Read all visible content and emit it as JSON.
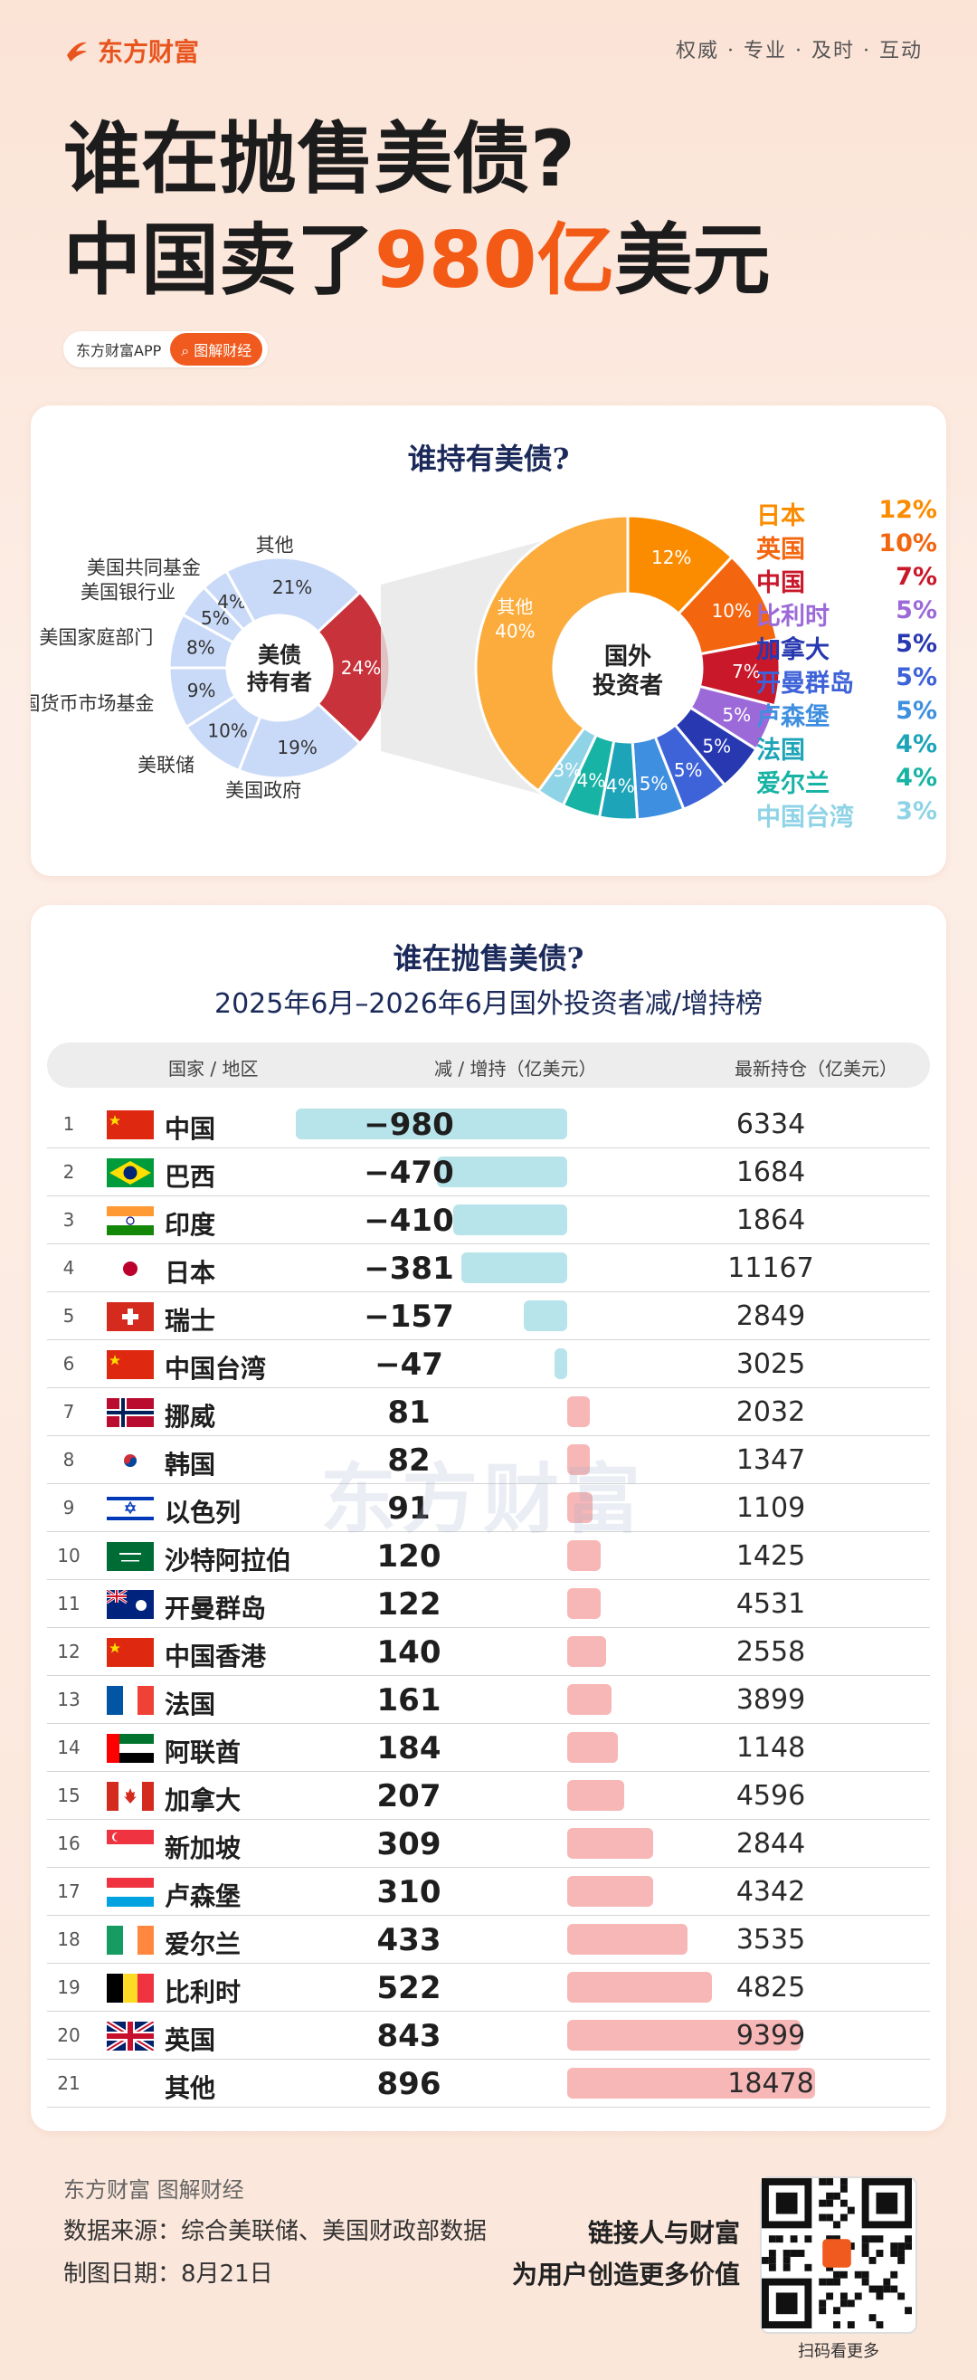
{
  "header": {
    "brand": "东方财富",
    "slogan": "权威 · 专业 · 及时 · 互动",
    "headline_line1": "谁在抛售美债?",
    "headline_line2_prefix": "中国卖了",
    "headline_line2_highlight": "980亿",
    "headline_line2_suffix": "美元",
    "pill_left": "东方财富APP",
    "pill_right": "图解财经"
  },
  "holders": {
    "title": "谁持有美债?",
    "inner_center": [
      "美债",
      "持有者"
    ],
    "outer_center": [
      "国外",
      "投资者"
    ],
    "watermark": "东方财富"
  },
  "chart_data": [
    {
      "type": "pie",
      "title": "谁持有美债?",
      "slices": [
        {
          "label": "其他",
          "value": 21,
          "color": "#c9daf8"
        },
        {
          "label": "美国政府",
          "value": 19,
          "color": "#c9daf8"
        },
        {
          "label": "美联储",
          "value": 10,
          "color": "#c9daf8"
        },
        {
          "label": "美国货币市场基金",
          "value": 9,
          "color": "#c9daf8"
        },
        {
          "label": "美国家庭部门",
          "value": 8,
          "color": "#c9daf8"
        },
        {
          "label": "美国银行业",
          "value": 5,
          "color": "#c9daf8"
        },
        {
          "label": "美国共同基金",
          "value": 4,
          "color": "#c9daf8"
        },
        {
          "label": "",
          "value": 24,
          "color": "#c8323a"
        }
      ]
    },
    {
      "type": "pie",
      "title": "国外投资者",
      "slices": [
        {
          "label": "日本",
          "value": 12,
          "color": "#fb8c00"
        },
        {
          "label": "英国",
          "value": 10,
          "color": "#f4650f"
        },
        {
          "label": "中国",
          "value": 7,
          "color": "#c9182a"
        },
        {
          "label": "比利时",
          "value": 5,
          "color": "#9c6ad8"
        },
        {
          "label": "加拿大",
          "value": 5,
          "color": "#2838b0"
        },
        {
          "label": "开曼群岛",
          "value": 5,
          "color": "#3e62d8"
        },
        {
          "label": "卢森堡",
          "value": 5,
          "color": "#3f8fe0"
        },
        {
          "label": "法国",
          "value": 4,
          "color": "#1ea4b8"
        },
        {
          "label": "爱尔兰",
          "value": 4,
          "color": "#17b3a4"
        },
        {
          "label": "中国台湾",
          "value": 3,
          "color": "#8fd3e6"
        },
        {
          "label": "其他",
          "value": 40,
          "color": "#fbac3c"
        }
      ]
    },
    {
      "type": "table",
      "title": "谁在抛售美债?",
      "subtitle": "2025年6月–2026年6月国外投资者减/增持榜",
      "columns": [
        "国家 / 地区",
        "减 / 增持（亿美元）",
        "最新持仓（亿美元）"
      ],
      "rows": [
        {
          "rank": "1",
          "name": "中国",
          "change": -980,
          "holding": 6334,
          "flag": "china"
        },
        {
          "rank": "2",
          "name": "巴西",
          "change": -470,
          "holding": 1684,
          "flag": "brazil"
        },
        {
          "rank": "3",
          "name": "印度",
          "change": -410,
          "holding": 1864,
          "flag": "india"
        },
        {
          "rank": "4",
          "name": "日本",
          "change": -381,
          "holding": 11167,
          "flag": "japan"
        },
        {
          "rank": "5",
          "name": "瑞士",
          "change": -157,
          "holding": 2849,
          "flag": "switzerland"
        },
        {
          "rank": "6",
          "name": "中国台湾",
          "change": -47,
          "holding": 3025,
          "flag": "china"
        },
        {
          "rank": "7",
          "name": "挪威",
          "change": 81,
          "holding": 2032,
          "flag": "norway"
        },
        {
          "rank": "8",
          "name": "韩国",
          "change": 82,
          "holding": 1347,
          "flag": "korea"
        },
        {
          "rank": "9",
          "name": "以色列",
          "change": 91,
          "holding": 1109,
          "flag": "israel"
        },
        {
          "rank": "10",
          "name": "沙特阿拉伯",
          "change": 120,
          "holding": 1425,
          "flag": "saudi"
        },
        {
          "rank": "11",
          "name": "开曼群岛",
          "change": 122,
          "holding": 4531,
          "flag": "cayman"
        },
        {
          "rank": "12",
          "name": "中国香港",
          "change": 140,
          "holding": 2558,
          "flag": "china"
        },
        {
          "rank": "13",
          "name": "法国",
          "change": 161,
          "holding": 3899,
          "flag": "france"
        },
        {
          "rank": "14",
          "name": "阿联酋",
          "change": 184,
          "holding": 1148,
          "flag": "uae"
        },
        {
          "rank": "15",
          "name": "加拿大",
          "change": 207,
          "holding": 4596,
          "flag": "canada"
        },
        {
          "rank": "16",
          "name": "新加坡",
          "change": 309,
          "holding": 2844,
          "flag": "singapore"
        },
        {
          "rank": "17",
          "name": "卢森堡",
          "change": 310,
          "holding": 4342,
          "flag": "luxembourg"
        },
        {
          "rank": "18",
          "name": "爱尔兰",
          "change": 433,
          "holding": 3535,
          "flag": "ireland"
        },
        {
          "rank": "19",
          "name": "比利时",
          "change": 522,
          "holding": 4825,
          "flag": "belgium"
        },
        {
          "rank": "20",
          "name": "英国",
          "change": 843,
          "holding": 9399,
          "flag": "uk"
        },
        {
          "rank": "21",
          "name": "其他",
          "change": 896,
          "holding": 18478,
          "flag": ""
        }
      ],
      "negative_color": "#b7e3ea",
      "positive_color": "#f7b7b7"
    }
  ],
  "legend_colors_note": "",
  "footer": {
    "brand": "东方财富 图解财经",
    "source": "数据来源：综合美联储、美国财政部数据",
    "date": "制图日期：8月21日",
    "tagline1": "链接人与财富",
    "tagline2": "为用户创造更多价值",
    "qr_caption": "扫码看更多"
  }
}
